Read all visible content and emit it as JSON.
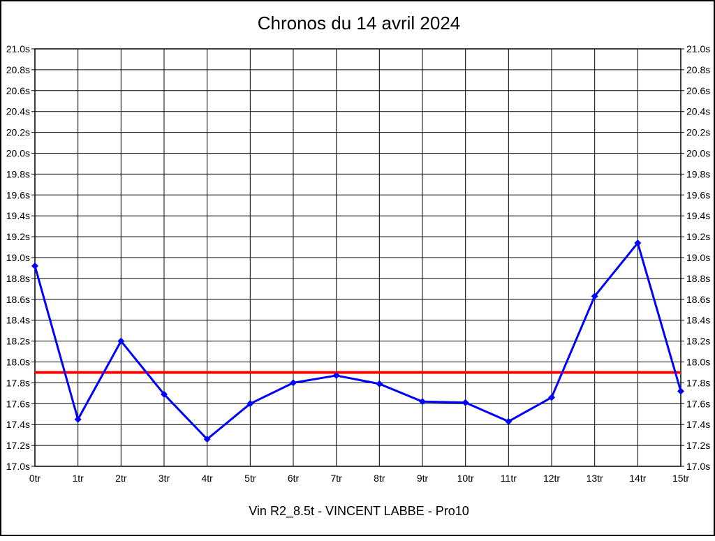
{
  "chart_data": {
    "type": "line",
    "title": "Chronos du 14 avril 2024",
    "subtitle": "Vin R2_8.5t - VINCENT LABBE - Pro10",
    "categories": [
      "0tr",
      "1tr",
      "2tr",
      "3tr",
      "4tr",
      "5tr",
      "6tr",
      "7tr",
      "8tr",
      "9tr",
      "10tr",
      "11tr",
      "12tr",
      "13tr",
      "14tr",
      "15tr"
    ],
    "values": [
      18.92,
      17.45,
      18.2,
      17.69,
      17.26,
      17.6,
      17.8,
      17.87,
      17.79,
      17.62,
      17.61,
      17.43,
      17.66,
      18.63,
      19.14,
      17.72
    ],
    "reference_line": {
      "value": 17.9,
      "color": "#ff0000"
    },
    "ylim": [
      17.0,
      21.0
    ],
    "ytick_step": 0.2,
    "ytick_suffix": "s",
    "grid": true,
    "legend": "none",
    "line_color": "#0000ff",
    "marker": "diamond",
    "axis_color": "#000000",
    "xlabel": "",
    "ylabel": ""
  }
}
